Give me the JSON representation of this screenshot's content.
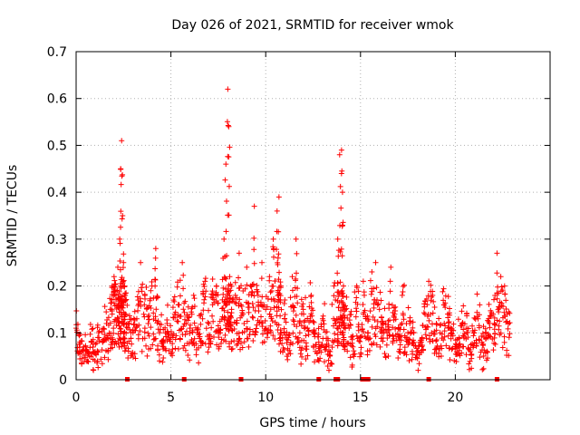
{
  "chart_data": {
    "type": "scatter",
    "title": "Day 026 of 2021, SRMTID for receiver wmok",
    "xlabel": "GPS time / hours",
    "ylabel": "SRMTID / TECUs",
    "xlim": [
      0,
      25
    ],
    "ylim": [
      0,
      0.7
    ],
    "xticks": [
      0,
      5,
      10,
      15,
      20
    ],
    "yticks": [
      0,
      0.1,
      0.2,
      0.3,
      0.4,
      0.5,
      0.6,
      0.7
    ],
    "xtick_labels": [
      "0",
      "5",
      "10",
      "15",
      "20"
    ],
    "ytick_labels": [
      "0",
      "0.1",
      "0.2",
      "0.3",
      "0.4",
      "0.5",
      "0.6",
      "0.7"
    ],
    "grid": true,
    "marker": "+",
    "color": "#ff0000",
    "series": [
      {
        "name": "SRMTID",
        "x": [
          0.0,
          0.2,
          0.4,
          0.6,
          0.8,
          1.0,
          1.2,
          1.4,
          1.6,
          1.8,
          1.9,
          2.0,
          2.1,
          2.2,
          2.3,
          2.35,
          2.4,
          2.45,
          2.5,
          2.55,
          2.6,
          2.8,
          3.0,
          3.2,
          3.4,
          3.6,
          3.8,
          4.0,
          4.2,
          4.4,
          4.6,
          4.8,
          5.0,
          5.2,
          5.4,
          5.6,
          5.8,
          6.0,
          6.2,
          6.4,
          6.6,
          6.8,
          7.0,
          7.2,
          7.4,
          7.6,
          7.8,
          7.9,
          8.0,
          8.05,
          8.1,
          8.2,
          8.4,
          8.6,
          8.8,
          9.0,
          9.2,
          9.4,
          9.6,
          9.8,
          10.0,
          10.2,
          10.4,
          10.6,
          10.7,
          10.8,
          11.0,
          11.2,
          11.4,
          11.6,
          11.8,
          12.0,
          12.2,
          12.4,
          12.6,
          12.8,
          13.0,
          13.2,
          13.4,
          13.6,
          13.8,
          13.9,
          14.0,
          14.05,
          14.1,
          14.2,
          14.4,
          14.6,
          14.8,
          15.0,
          15.2,
          15.4,
          15.6,
          15.8,
          16.0,
          16.2,
          16.4,
          16.6,
          16.8,
          17.0,
          17.2,
          17.4,
          17.6,
          17.8,
          18.0,
          18.2,
          18.4,
          18.6,
          18.8,
          19.0,
          19.2,
          19.4,
          19.6,
          19.8,
          20.0,
          20.2,
          20.4,
          20.6,
          20.8,
          21.0,
          21.2,
          21.4,
          21.6,
          21.8,
          22.0,
          22.2,
          22.4,
          22.6,
          22.8
        ],
        "y": [
          0.11,
          0.08,
          0.07,
          0.06,
          0.08,
          0.06,
          0.09,
          0.08,
          0.12,
          0.15,
          0.2,
          0.22,
          0.18,
          0.24,
          0.3,
          0.45,
          0.51,
          0.35,
          0.25,
          0.2,
          0.14,
          0.12,
          0.1,
          0.13,
          0.25,
          0.16,
          0.12,
          0.2,
          0.28,
          0.1,
          0.08,
          0.12,
          0.09,
          0.14,
          0.16,
          0.25,
          0.12,
          0.11,
          0.18,
          0.1,
          0.14,
          0.21,
          0.12,
          0.16,
          0.2,
          0.1,
          0.3,
          0.46,
          0.62,
          0.54,
          0.22,
          0.15,
          0.18,
          0.27,
          0.14,
          0.24,
          0.2,
          0.37,
          0.18,
          0.25,
          0.15,
          0.22,
          0.3,
          0.36,
          0.39,
          0.2,
          0.13,
          0.09,
          0.22,
          0.3,
          0.1,
          0.14,
          0.11,
          0.18,
          0.1,
          0.08,
          0.13,
          0.07,
          0.06,
          0.2,
          0.3,
          0.48,
          0.49,
          0.4,
          0.2,
          0.15,
          0.11,
          0.07,
          0.2,
          0.09,
          0.18,
          0.1,
          0.23,
          0.25,
          0.15,
          0.12,
          0.1,
          0.24,
          0.14,
          0.11,
          0.18,
          0.09,
          0.12,
          0.1,
          0.06,
          0.08,
          0.14,
          0.21,
          0.18,
          0.12,
          0.1,
          0.16,
          0.14,
          0.1,
          0.07,
          0.09,
          0.12,
          0.11,
          0.06,
          0.1,
          0.13,
          0.08,
          0.1,
          0.12,
          0.14,
          0.27,
          0.22,
          0.2,
          0.12
        ]
      }
    ]
  }
}
